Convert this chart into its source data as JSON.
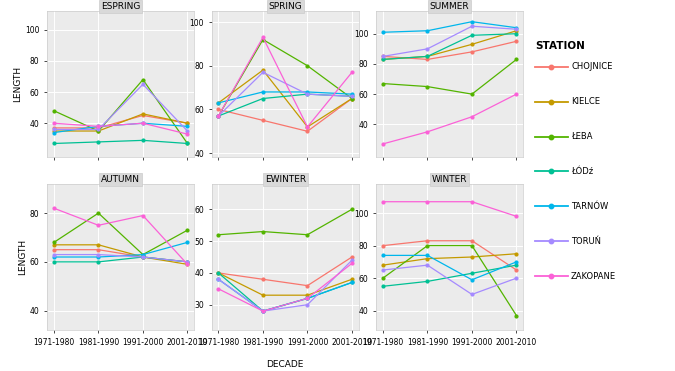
{
  "decades": [
    "1971-1980",
    "1981-1990",
    "1991-2000",
    "2001-2010"
  ],
  "stations": [
    "CHOJNICE",
    "KIELCE",
    "ŁEBA",
    "ŁÓDź",
    "TARNÓW",
    "TORUŃ",
    "ZAKOPANE"
  ],
  "colors": {
    "CHOJNICE": "#F8766D",
    "KIELCE": "#C49A00",
    "ŁEBA": "#53B400",
    "ŁÓDź": "#00C094",
    "TARNÓW": "#00B6EB",
    "TORUŃ": "#A58AFF",
    "ZAKOPANE": "#FB61D7"
  },
  "panels": {
    "ESPRING": {
      "CHOJNICE": [
        37,
        37,
        45,
        40
      ],
      "KIELCE": [
        35,
        35,
        46,
        40
      ],
      "ŁEBA": [
        48,
        35,
        68,
        27
      ],
      "ŁÓDź": [
        27,
        28,
        29,
        27
      ],
      "TARNÓW": [
        34,
        38,
        40,
        38
      ],
      "TORUŃ": [
        36,
        36,
        65,
        35
      ],
      "ZAKOPANE": [
        40,
        38,
        40,
        33
      ]
    },
    "SPRING": {
      "CHOJNICE": [
        60,
        55,
        50,
        65
      ],
      "KIELCE": [
        63,
        78,
        52,
        65
      ],
      "ŁEBA": [
        57,
        92,
        80,
        65
      ],
      "ŁÓDź": [
        57,
        65,
        67,
        66
      ],
      "TARNÓW": [
        63,
        68,
        68,
        67
      ],
      "TORUŃ": [
        57,
        77,
        67,
        66
      ],
      "ZAKOPANE": [
        57,
        93,
        52,
        77
      ]
    },
    "SUMMER": {
      "CHOJNICE": [
        85,
        83,
        88,
        95
      ],
      "KIELCE": [
        83,
        85,
        93,
        102
      ],
      "ŁEBA": [
        67,
        65,
        60,
        83
      ],
      "ŁÓDź": [
        83,
        85,
        99,
        100
      ],
      "TARNÓW": [
        101,
        102,
        108,
        104
      ],
      "TORUŃ": [
        85,
        90,
        105,
        103
      ],
      "ZAKOPANE": [
        27,
        35,
        45,
        60
      ]
    },
    "AUTUMN": {
      "CHOJNICE": [
        65,
        65,
        62,
        60
      ],
      "KIELCE": [
        67,
        67,
        62,
        59
      ],
      "ŁEBA": [
        68,
        80,
        63,
        73
      ],
      "ŁÓDź": [
        60,
        60,
        62,
        60
      ],
      "TARNÓW": [
        62,
        62,
        63,
        68
      ],
      "TORUŃ": [
        63,
        63,
        62,
        60
      ],
      "ZAKOPANE": [
        82,
        75,
        79,
        59
      ]
    },
    "EWINTER": {
      "CHOJNICE": [
        40,
        38,
        36,
        45
      ],
      "KIELCE": [
        40,
        33,
        33,
        38
      ],
      "ŁEBA": [
        52,
        53,
        52,
        60
      ],
      "ŁÓDź": [
        40,
        28,
        32,
        37
      ],
      "TARNÓW": [
        38,
        28,
        32,
        37
      ],
      "TORUŃ": [
        38,
        28,
        30,
        44
      ],
      "ZAKOPANE": [
        35,
        28,
        32,
        43
      ]
    },
    "WINTER": {
      "CHOJNICE": [
        80,
        83,
        83,
        65
      ],
      "KIELCE": [
        68,
        72,
        73,
        75
      ],
      "ŁEBA": [
        60,
        80,
        80,
        37
      ],
      "ŁÓDź": [
        55,
        58,
        63,
        68
      ],
      "TARNÓW": [
        74,
        74,
        59,
        70
      ],
      "TORUŃ": [
        65,
        68,
        50,
        60
      ],
      "ZAKOPANE": [
        107,
        107,
        107,
        98
      ]
    }
  },
  "panel_order": [
    "ESPRING",
    "SPRING",
    "SUMMER",
    "AUTUMN",
    "EWINTER",
    "WINTER"
  ],
  "ylims": {
    "ESPRING": [
      18,
      112
    ],
    "SPRING": [
      38,
      105
    ],
    "SUMMER": [
      18,
      115
    ],
    "AUTUMN": [
      32,
      92
    ],
    "EWINTER": [
      22,
      68
    ],
    "WINTER": [
      28,
      118
    ]
  },
  "yticks": {
    "ESPRING": [
      40,
      60,
      80,
      100
    ],
    "SPRING": [
      40,
      60,
      80,
      100
    ],
    "SUMMER": [
      40,
      60,
      80,
      100
    ],
    "AUTUMN": [
      40,
      60,
      80
    ],
    "EWINTER": [
      30,
      40,
      50,
      60
    ],
    "WINTER": [
      40,
      60,
      80,
      100
    ]
  },
  "background_color": "#EBEBEB",
  "panel_strip_color": "#D9D9D9",
  "panel_border_color": "#CCCCCC",
  "grid_color": "#FFFFFF",
  "title_fontsize": 6.5,
  "axis_label_fontsize": 6.5,
  "tick_fontsize": 5.5,
  "legend_title": "STATION",
  "legend_labels": [
    "CHOJNICE",
    "KIELCE",
    "ŁEBA",
    "ŁÓDź",
    "TARNÓW",
    "TORUŃ",
    "ZAKOPANE"
  ]
}
